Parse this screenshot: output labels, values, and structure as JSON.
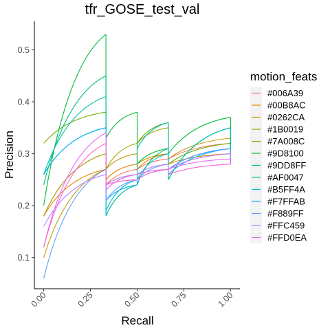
{
  "chart_data": {
    "type": "line",
    "title": "tfr_GOSE_test_val",
    "xlabel": "Recall",
    "ylabel": "Precision",
    "xlim": [
      -0.05,
      1.05
    ],
    "ylim": [
      0.04,
      0.555
    ],
    "x_ticks": [
      0.0,
      0.25,
      0.5,
      0.75,
      1.0
    ],
    "x_tick_labels": [
      "0.00",
      "0.25",
      "0.50",
      "0.75",
      "1.00"
    ],
    "y_ticks": [
      0.1,
      0.2,
      0.3,
      0.4,
      0.5
    ],
    "y_tick_labels": [
      "0.1",
      "0.2",
      "0.3",
      "0.4",
      "0.5"
    ],
    "grid": false,
    "legend_title": "motion_feats",
    "legend_position": "right",
    "series": [
      {
        "name": "#006A39",
        "color": "#F8766D",
        "values": [
          {
            "start": [
              0.0,
              0.18
            ],
            "end": [
              0.333,
              0.3
            ]
          },
          {
            "start": [
              0.333,
              0.24
            ],
            "end": [
              0.5,
              0.27
            ]
          },
          {
            "start": [
              0.5,
              0.27
            ],
            "end": [
              0.667,
              0.29
            ]
          },
          {
            "start": [
              0.667,
              0.29
            ],
            "end": [
              1.0,
              0.32
            ]
          }
        ]
      },
      {
        "name": "#00B8AC",
        "color": "#E58700",
        "values": [
          {
            "start": [
              0.0,
              0.18
            ],
            "end": [
              0.333,
              0.27
            ]
          },
          {
            "start": [
              0.333,
              0.25
            ],
            "end": [
              0.5,
              0.28
            ]
          },
          {
            "start": [
              0.5,
              0.27
            ],
            "end": [
              0.667,
              0.3
            ]
          },
          {
            "start": [
              0.667,
              0.28
            ],
            "end": [
              1.0,
              0.3
            ]
          }
        ]
      },
      {
        "name": "#0262CA",
        "color": "#C99800",
        "values": [
          {
            "start": [
              0.0,
              0.1
            ],
            "end": [
              0.333,
              0.27
            ]
          },
          {
            "start": [
              0.333,
              0.27
            ],
            "end": [
              0.5,
              0.3
            ]
          },
          {
            "start": [
              0.5,
              0.28
            ],
            "end": [
              0.667,
              0.3
            ]
          },
          {
            "start": [
              0.667,
              0.29
            ],
            "end": [
              1.0,
              0.33
            ]
          }
        ]
      },
      {
        "name": "#1B0019",
        "color": "#A3A500",
        "values": [
          {
            "start": [
              0.0,
              0.18
            ],
            "end": [
              0.333,
              0.3
            ]
          },
          {
            "start": [
              0.333,
              0.27
            ],
            "end": [
              0.5,
              0.32
            ]
          },
          {
            "start": [
              0.5,
              0.32
            ],
            "end": [
              0.667,
              0.35
            ]
          },
          {
            "start": [
              0.667,
              0.28
            ],
            "end": [
              1.0,
              0.32
            ]
          }
        ]
      },
      {
        "name": "#7A008C",
        "color": "#6BB100",
        "values": [
          {
            "start": [
              0.0,
              0.32
            ],
            "end": [
              0.333,
              0.38
            ]
          },
          {
            "start": [
              0.333,
              0.24
            ],
            "end": [
              0.5,
              0.26
            ]
          },
          {
            "start": [
              0.5,
              0.32
            ],
            "end": [
              0.667,
              0.36
            ]
          },
          {
            "start": [
              0.667,
              0.28
            ],
            "end": [
              1.0,
              0.32
            ]
          }
        ]
      },
      {
        "name": "#9D8100",
        "color": "#00BA38",
        "values": [
          {
            "start": [
              0.0,
              0.2
            ],
            "end": [
              0.333,
              0.53
            ]
          },
          {
            "start": [
              0.333,
              0.33
            ],
            "end": [
              0.5,
              0.38
            ]
          },
          {
            "start": [
              0.5,
              0.28
            ],
            "end": [
              0.667,
              0.31
            ]
          },
          {
            "start": [
              0.667,
              0.3
            ],
            "end": [
              1.0,
              0.37
            ]
          }
        ]
      },
      {
        "name": "#9DD8FF",
        "color": "#00BF7D",
        "values": [
          {
            "start": [
              0.0,
              0.24
            ],
            "end": [
              0.333,
              0.45
            ]
          },
          {
            "start": [
              0.333,
              0.18
            ],
            "end": [
              0.5,
              0.24
            ]
          },
          {
            "start": [
              0.5,
              0.24
            ],
            "end": [
              0.667,
              0.31
            ]
          },
          {
            "start": [
              0.667,
              0.25
            ],
            "end": [
              1.0,
              0.35
            ]
          }
        ]
      },
      {
        "name": "#AF0047",
        "color": "#00C0AF",
        "values": [
          {
            "start": [
              0.0,
              0.26
            ],
            "end": [
              0.333,
              0.41
            ]
          },
          {
            "start": [
              0.333,
              0.18
            ],
            "end": [
              0.5,
              0.24
            ]
          },
          {
            "start": [
              0.5,
              0.31
            ],
            "end": [
              0.667,
              0.36
            ]
          },
          {
            "start": [
              0.667,
              0.25
            ],
            "end": [
              1.0,
              0.35
            ]
          }
        ]
      },
      {
        "name": "#B5FF4A",
        "color": "#00BCD8",
        "values": [
          {
            "start": [
              0.0,
              0.26
            ],
            "end": [
              0.333,
              0.35
            ]
          },
          {
            "start": [
              0.333,
              0.19
            ],
            "end": [
              0.5,
              0.25
            ]
          },
          {
            "start": [
              0.5,
              0.25
            ],
            "end": [
              0.667,
              0.3
            ]
          },
          {
            "start": [
              0.667,
              0.27
            ],
            "end": [
              1.0,
              0.31
            ]
          }
        ]
      },
      {
        "name": "#F7FFAB",
        "color": "#00B0F6",
        "values": [
          {
            "start": [
              0.0,
              0.26
            ],
            "end": [
              0.333,
              0.35
            ]
          },
          {
            "start": [
              0.333,
              0.21
            ],
            "end": [
              0.5,
              0.24
            ]
          },
          {
            "start": [
              0.5,
              0.25
            ],
            "end": [
              0.667,
              0.27
            ]
          },
          {
            "start": [
              0.667,
              0.26
            ],
            "end": [
              1.0,
              0.31
            ]
          }
        ]
      },
      {
        "name": "#F889FF",
        "color": "#619CFF",
        "values": [
          {
            "start": [
              0.0,
              0.06
            ],
            "end": [
              0.333,
              0.27
            ]
          },
          {
            "start": [
              0.333,
              0.21
            ],
            "end": [
              0.5,
              0.25
            ]
          },
          {
            "start": [
              0.5,
              0.25
            ],
            "end": [
              0.667,
              0.28
            ]
          },
          {
            "start": [
              0.667,
              0.27
            ],
            "end": [
              1.0,
              0.31
            ]
          }
        ]
      },
      {
        "name": "#FFC459",
        "color": "#B983FF",
        "values": [
          {
            "start": [
              0.0,
              0.16
            ],
            "end": [
              0.333,
              0.26
            ]
          },
          {
            "start": [
              0.333,
              0.24
            ],
            "end": [
              0.5,
              0.26
            ]
          },
          {
            "start": [
              0.5,
              0.26
            ],
            "end": [
              0.667,
              0.28
            ]
          },
          {
            "start": [
              0.667,
              0.27
            ],
            "end": [
              1.0,
              0.3
            ]
          }
        ]
      },
      {
        "name": "#FFD0EA",
        "color": "#E76BF3",
        "values": [
          {
            "start": [
              0.0,
              0.12
            ],
            "end": [
              0.333,
              0.34
            ]
          },
          {
            "start": [
              0.333,
              0.23
            ],
            "end": [
              0.5,
              0.26
            ]
          },
          {
            "start": [
              0.5,
              0.26
            ],
            "end": [
              0.667,
              0.27
            ]
          },
          {
            "start": [
              0.667,
              0.27
            ],
            "end": [
              1.0,
              0.29
            ]
          }
        ]
      },
      {
        "name": "",
        "color": "#FD61D1",
        "values": [
          {
            "start": [
              0.0,
              0.12
            ],
            "end": [
              0.333,
              0.32
            ]
          },
          {
            "start": [
              0.333,
              0.24
            ],
            "end": [
              0.5,
              0.25
            ]
          },
          {
            "start": [
              0.5,
              0.25
            ],
            "end": [
              0.667,
              0.27
            ]
          },
          {
            "start": [
              0.667,
              0.26
            ],
            "end": [
              1.0,
              0.28
            ]
          }
        ]
      }
    ]
  }
}
